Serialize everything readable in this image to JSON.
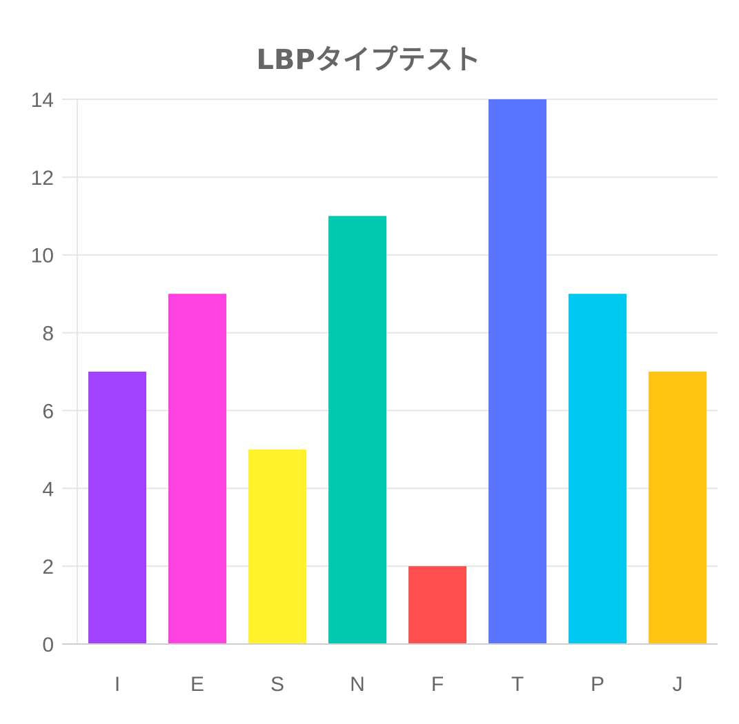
{
  "chart_data": {
    "type": "bar",
    "title": "LBPタイプテスト",
    "categories": [
      "I",
      "E",
      "S",
      "N",
      "F",
      "T",
      "P",
      "J"
    ],
    "values": [
      7,
      9,
      5,
      11,
      2,
      14,
      9,
      7
    ],
    "colors": [
      "#a142ff",
      "#ff42e1",
      "#fff12a",
      "#00c9b2",
      "#ff4e4e",
      "#5a75ff",
      "#00c8f0",
      "#ffc412"
    ],
    "xlabel": "",
    "ylabel": "",
    "ylim": [
      0,
      14
    ],
    "yticks": [
      0,
      2,
      4,
      6,
      8,
      10,
      12,
      14
    ],
    "grid": true,
    "legend": "none",
    "gridColor": "#e6e6e6",
    "axisColor": "#cfcfcf",
    "textColor": "#666666"
  }
}
